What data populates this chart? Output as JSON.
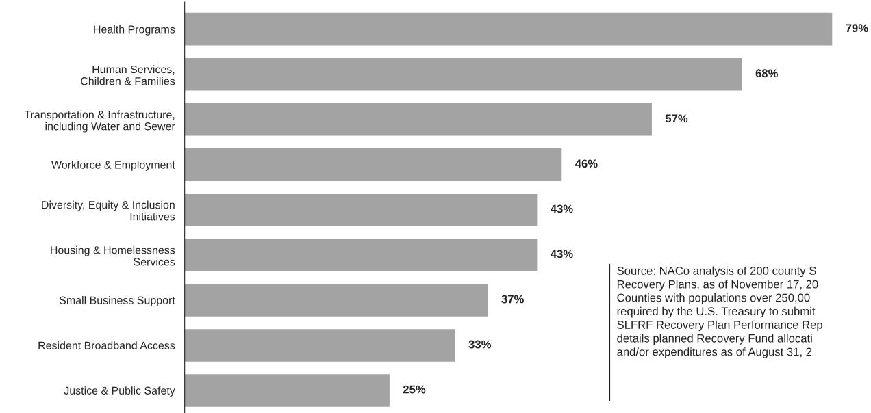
{
  "chart_data": {
    "type": "bar",
    "orientation": "horizontal",
    "categories": [
      "Health Programs",
      "Human Services,\nChildren & Families",
      "Transportation & Infrastructure,\nincluding Water and Sewer",
      "Workforce & Employment",
      "Diversity, Equity & Inclusion\nInitiatives",
      "Housing & Homelessness\nServices",
      "Small Business Support",
      "Resident Broadband Access",
      "Justice & Public Safety"
    ],
    "values": [
      79,
      68,
      57,
      46,
      43,
      43,
      37,
      33,
      25
    ],
    "value_labels": [
      "79%",
      "68%",
      "57%",
      "46%",
      "43%",
      "43%",
      "37%",
      "33%",
      "25%"
    ],
    "color": "#a3a3a3",
    "annotations": [
      "Source: NACo analysis of 200 county S\nRecovery Plans, as of November 17, 20\nCounties with populations over 250,00\nrequired by the U.S. Treasury to submit\nSLFRF Recovery Plan Performance Rep\ndetails planned Recovery Fund allocati\nand/or expenditures as of August 31, 2"
    ],
    "grid": false,
    "legend": false
  }
}
